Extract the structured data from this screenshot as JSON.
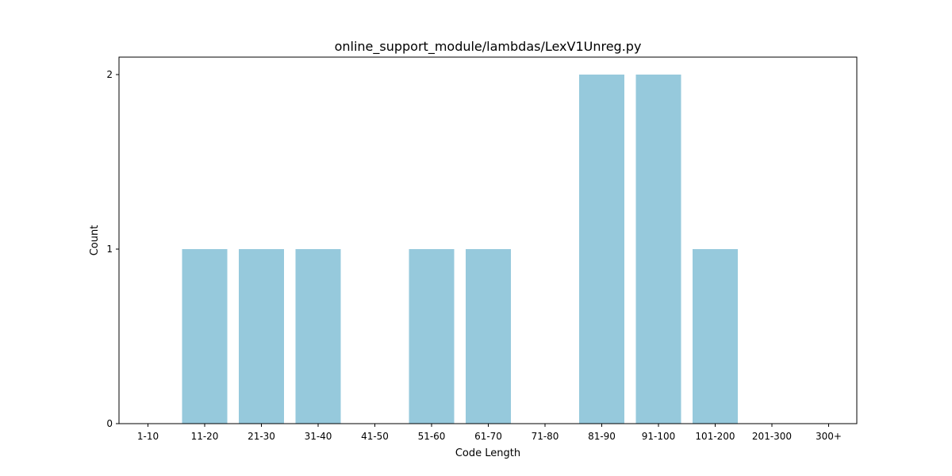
{
  "chart_data": {
    "type": "bar",
    "title": "online_support_module/lambdas/LexV1Unreg.py",
    "xlabel": "Code Length",
    "ylabel": "Count",
    "categories": [
      "1-10",
      "11-20",
      "21-30",
      "31-40",
      "41-50",
      "51-60",
      "61-70",
      "71-80",
      "81-90",
      "91-100",
      "101-200",
      "201-300",
      "300+"
    ],
    "values": [
      0,
      1,
      1,
      1,
      0,
      1,
      1,
      0,
      2,
      2,
      1,
      0,
      0
    ],
    "ylim": [
      0,
      2.1
    ],
    "yticks": [
      0,
      1,
      2
    ],
    "bar_color": "#96c9dc",
    "grid": false,
    "legend": "none"
  }
}
